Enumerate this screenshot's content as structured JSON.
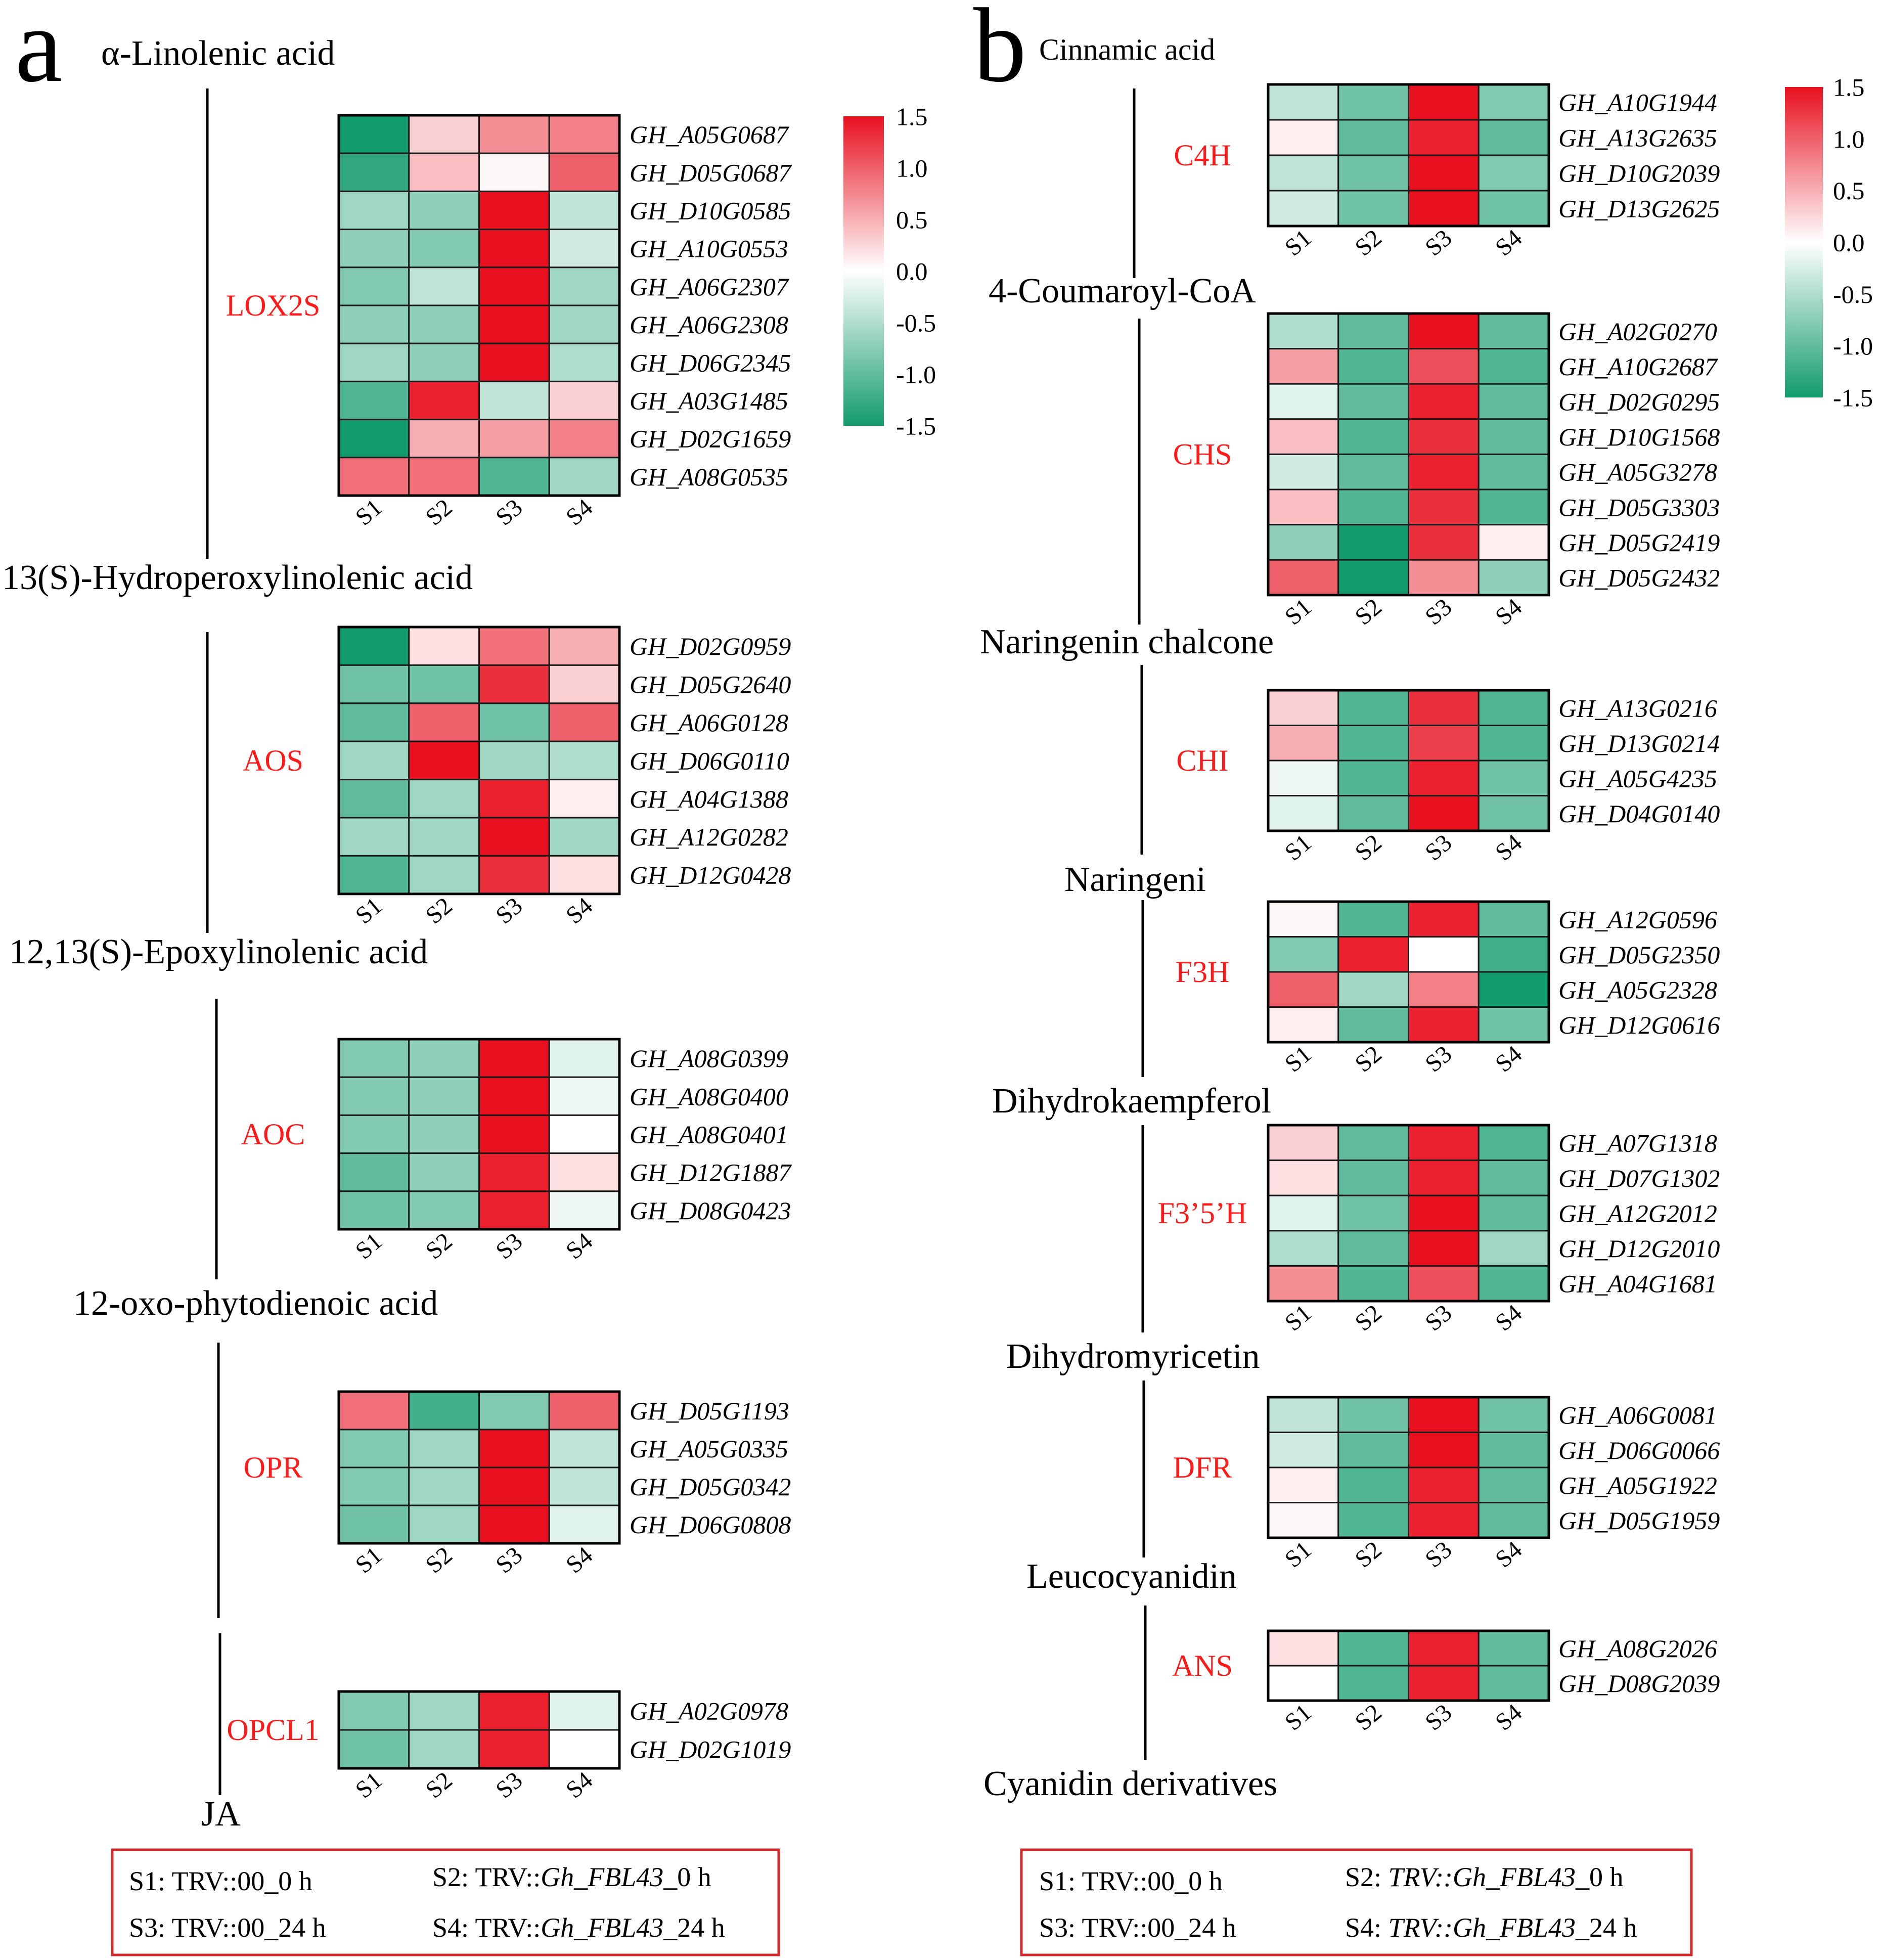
{
  "panel_a": {
    "letter": "a",
    "metabolites": [
      "α-Linolenic acid",
      "13(S)-Hydroperoxylinolenic acid",
      "12,13(S)-Epoxylinolenic acid",
      "12-oxo-phytodienoic acid",
      "JA"
    ],
    "legend": {
      "s1": "S1: TRV::00_0 h",
      "s2_prefix": "S2: TRV::",
      "s2_gene": "Gh_FBL43",
      "s2_suffix": "_0 h",
      "s3": "S3: TRV::00_24 h",
      "s4_prefix": "S4: TRV::",
      "s4_gene": "Gh_FBL43",
      "s4_suffix": "_24 h"
    }
  },
  "panel_b": {
    "letter": "b",
    "metabolites": [
      "Cinnamic acid",
      "4-Coumaroyl-CoA",
      "Naringenin chalcone",
      "Naringeni",
      "Dihydrokaempferol",
      "Dihydromyricetin",
      "Leucocyanidin",
      "Cyanidin derivatives"
    ],
    "legend": {
      "s1": "S1: TRV::00_0 h",
      "s2_gene": "TRV::Gh_FBL43",
      "s2_prefix": "S2: ",
      "s2_suffix": "_0 h",
      "s3": "S3: TRV::00_24 h",
      "s4_prefix": "S4: ",
      "s4_gene": "TRV::Gh_FBL43",
      "s4_suffix": "_24 h"
    }
  },
  "colors": {
    "high": "#e8101f",
    "mid": "#ffffff",
    "low": "#129b6c",
    "enzyme_label": "#ff1a1a",
    "legend_border": "#d22828"
  },
  "chart_data": [
    {
      "type": "heatmap",
      "title": "LOX2S",
      "x": [
        "S1",
        "S2",
        "S3",
        "S4"
      ],
      "rows": [
        "GH_A05G0687",
        "GH_D05G0687",
        "GH_D10G0585",
        "GH_A10G0553",
        "GH_A06G2307",
        "GH_A06G2308",
        "GH_D06G2345",
        "GH_A03G1485",
        "GH_D02G1659",
        "GH_A08G0535"
      ],
      "values": [
        [
          -1.5,
          0.3,
          0.7,
          0.8
        ],
        [
          -1.3,
          0.4,
          0.05,
          1.0
        ],
        [
          -0.6,
          -0.7,
          1.5,
          -0.4
        ],
        [
          -0.7,
          -0.8,
          1.5,
          -0.3
        ],
        [
          -0.8,
          -0.4,
          1.5,
          -0.6
        ],
        [
          -0.7,
          -0.7,
          1.5,
          -0.6
        ],
        [
          -0.6,
          -0.7,
          1.5,
          -0.5
        ],
        [
          -1.1,
          1.4,
          -0.4,
          0.3
        ],
        [
          -1.5,
          0.5,
          0.6,
          0.8
        ],
        [
          0.9,
          0.9,
          -1.1,
          -0.6
        ]
      ],
      "colorbar": {
        "ticks": [
          "1.5",
          "1.0",
          "0.5",
          "0.0",
          "-0.5",
          "-1.0",
          "-1.5"
        ],
        "range": [
          -1.5,
          1.5
        ]
      }
    },
    {
      "type": "heatmap",
      "title": "AOS",
      "x": [
        "S1",
        "S2",
        "S3",
        "S4"
      ],
      "rows": [
        "GH_D02G0959",
        "GH_D05G2640",
        "GH_A06G0128",
        "GH_D06G0110",
        "GH_A04G1388",
        "GH_A12G0282",
        "GH_D12G0428"
      ],
      "values": [
        [
          -1.5,
          0.2,
          0.9,
          0.5
        ],
        [
          -0.9,
          -0.9,
          1.3,
          0.3
        ],
        [
          -1.0,
          1.0,
          -0.9,
          1.0
        ],
        [
          -0.6,
          1.5,
          -0.6,
          -0.5
        ],
        [
          -1.0,
          -0.6,
          1.4,
          0.1
        ],
        [
          -0.6,
          -0.6,
          1.5,
          -0.6
        ],
        [
          -1.1,
          -0.6,
          1.3,
          0.2
        ]
      ]
    },
    {
      "type": "heatmap",
      "title": "AOC",
      "x": [
        "S1",
        "S2",
        "S3",
        "S4"
      ],
      "rows": [
        "GH_A08G0399",
        "GH_A08G0400",
        "GH_A08G0401",
        "GH_D12G1887",
        "GH_D08G0423"
      ],
      "values": [
        [
          -0.8,
          -0.7,
          1.5,
          -0.2
        ],
        [
          -0.8,
          -0.7,
          1.5,
          -0.1
        ],
        [
          -0.8,
          -0.7,
          1.5,
          0.0
        ],
        [
          -1.0,
          -0.7,
          1.4,
          0.2
        ],
        [
          -0.9,
          -0.8,
          1.4,
          -0.1
        ]
      ]
    },
    {
      "type": "heatmap",
      "title": "OPR",
      "x": [
        "S1",
        "S2",
        "S3",
        "S4"
      ],
      "rows": [
        "GH_D05G1193",
        "GH_A05G0335",
        "GH_D05G0342",
        "GH_D06G0808"
      ],
      "values": [
        [
          0.9,
          -1.2,
          -0.8,
          1.0
        ],
        [
          -0.8,
          -0.6,
          1.5,
          -0.4
        ],
        [
          -0.8,
          -0.6,
          1.5,
          -0.4
        ],
        [
          -0.9,
          -0.6,
          1.5,
          -0.2
        ]
      ]
    },
    {
      "type": "heatmap",
      "title": "OPCL1",
      "x": [
        "S1",
        "S2",
        "S3",
        "S4"
      ],
      "rows": [
        "GH_A02G0978",
        "GH_D02G1019"
      ],
      "values": [
        [
          -0.8,
          -0.6,
          1.4,
          -0.2
        ],
        [
          -0.9,
          -0.6,
          1.4,
          0.0
        ]
      ]
    },
    {
      "type": "heatmap",
      "title": "C4H",
      "x": [
        "S1",
        "S2",
        "S3",
        "S4"
      ],
      "rows": [
        "GH_A10G1944",
        "GH_A13G2635",
        "GH_D10G2039",
        "GH_D13G2625"
      ],
      "values": [
        [
          -0.4,
          -0.9,
          1.5,
          -0.8
        ],
        [
          0.1,
          -1.0,
          1.4,
          -1.0
        ],
        [
          -0.4,
          -0.9,
          1.5,
          -0.8
        ],
        [
          -0.3,
          -0.9,
          1.5,
          -0.9
        ]
      ],
      "colorbar": {
        "ticks": [
          "1.5",
          "1.0",
          "0.5",
          "0.0",
          "-0.5",
          "-1.0",
          "-1.5"
        ],
        "range": [
          -1.5,
          1.5
        ]
      }
    },
    {
      "type": "heatmap",
      "title": "CHS",
      "x": [
        "S1",
        "S2",
        "S3",
        "S4"
      ],
      "rows": [
        "GH_A02G0270",
        "GH_A10G2687",
        "GH_D02G0295",
        "GH_D10G1568",
        "GH_A05G3278",
        "GH_D05G3303",
        "GH_D05G2419",
        "GH_D05G2432"
      ],
      "values": [
        [
          -0.5,
          -1.0,
          1.5,
          -1.0
        ],
        [
          0.6,
          -1.1,
          1.1,
          -1.1
        ],
        [
          -0.2,
          -1.0,
          1.4,
          -1.0
        ],
        [
          0.4,
          -1.1,
          1.3,
          -1.0
        ],
        [
          -0.3,
          -1.0,
          1.4,
          -1.0
        ],
        [
          0.4,
          -1.1,
          1.3,
          -1.1
        ],
        [
          -0.7,
          -1.5,
          1.3,
          0.1
        ],
        [
          1.0,
          -1.5,
          0.7,
          -0.7
        ]
      ]
    },
    {
      "type": "heatmap",
      "title": "CHI",
      "x": [
        "S1",
        "S2",
        "S3",
        "S4"
      ],
      "rows": [
        "GH_A13G0216",
        "GH_D13G0214",
        "GH_A05G4235",
        "GH_D04G0140"
      ],
      "values": [
        [
          0.3,
          -1.1,
          1.3,
          -1.1
        ],
        [
          0.5,
          -1.1,
          1.2,
          -1.1
        ],
        [
          -0.1,
          -1.1,
          1.4,
          -0.9
        ],
        [
          -0.2,
          -1.0,
          1.5,
          -0.9
        ]
      ]
    },
    {
      "type": "heatmap",
      "title": "F3H",
      "x": [
        "S1",
        "S2",
        "S3",
        "S4"
      ],
      "rows": [
        "GH_A12G0596",
        "GH_D05G2350",
        "GH_A05G2328",
        "GH_D12G0616"
      ],
      "values": [
        [
          0.05,
          -1.1,
          1.4,
          -1.0
        ],
        [
          -0.8,
          1.4,
          0.0,
          -1.2
        ],
        [
          1.0,
          -0.6,
          0.8,
          -1.5
        ],
        [
          0.1,
          -1.0,
          1.4,
          -0.9
        ]
      ]
    },
    {
      "type": "heatmap",
      "title": "F3’5’H",
      "x": [
        "S1",
        "S2",
        "S3",
        "S4"
      ],
      "rows": [
        "GH_A07G1318",
        "GH_D07G1302",
        "GH_A12G2012",
        "GH_D12G2010",
        "GH_A04G1681"
      ],
      "values": [
        [
          0.3,
          -1.0,
          1.4,
          -1.1
        ],
        [
          0.2,
          -1.0,
          1.4,
          -1.0
        ],
        [
          -0.2,
          -0.9,
          1.5,
          -1.0
        ],
        [
          -0.5,
          -1.0,
          1.5,
          -0.6
        ],
        [
          0.7,
          -1.1,
          1.1,
          -1.1
        ]
      ]
    },
    {
      "type": "heatmap",
      "title": "DFR",
      "x": [
        "S1",
        "S2",
        "S3",
        "S4"
      ],
      "rows": [
        "GH_A06G0081",
        "GH_D06G0066",
        "GH_A05G1922",
        "GH_D05G1959"
      ],
      "values": [
        [
          -0.4,
          -0.9,
          1.5,
          -0.9
        ],
        [
          -0.3,
          -1.0,
          1.5,
          -1.0
        ],
        [
          0.1,
          -1.1,
          1.4,
          -1.0
        ],
        [
          0.05,
          -1.1,
          1.4,
          -1.0
        ]
      ]
    },
    {
      "type": "heatmap",
      "title": "ANS",
      "x": [
        "S1",
        "S2",
        "S3",
        "S4"
      ],
      "rows": [
        "GH_A08G2026",
        "GH_D08G2039"
      ],
      "values": [
        [
          0.2,
          -1.1,
          1.4,
          -1.0
        ],
        [
          0.0,
          -1.1,
          1.4,
          -1.0
        ]
      ]
    }
  ]
}
